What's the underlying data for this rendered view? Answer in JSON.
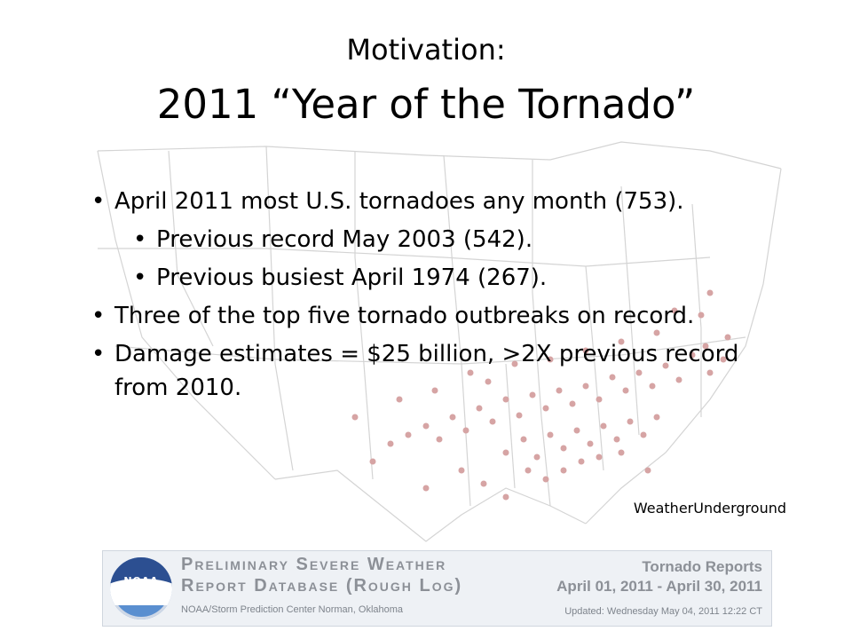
{
  "title": {
    "line1": "Motivation:",
    "line2": "2011 “Year of the Tornado”"
  },
  "bullets": [
    {
      "level": 1,
      "text": "April 2011 most U.S. tornadoes any month (753)."
    },
    {
      "level": 2,
      "text": "Previous record May 2003 (542)."
    },
    {
      "level": 2,
      "text": "Previous busiest April 1974 (267)."
    },
    {
      "level": 1,
      "text": "Three of the top five tornado outbreaks on record."
    },
    {
      "level": 1,
      "text": "Damage estimates = $25 billion, >2X previous record from 2010."
    }
  ],
  "bullet_glyph": "•",
  "source": "WeatherUnderground",
  "banner": {
    "logo_text": "NOAA",
    "title_line1": "Preliminary Severe Weather",
    "title_line2": "Report Database (Rough Log)",
    "subtitle": "NOAA/Storm Prediction Center   Norman, Oklahoma",
    "right_line1": "Tornado Reports",
    "right_line2": "April 01, 2011 - April 30, 2011",
    "updated": "Updated: Wednesday May 04, 2011 12:22 CT"
  },
  "colors": {
    "map_lines": "#cfcfcf",
    "report_dots": "#c98a8a",
    "banner_text": "#8c9097"
  }
}
